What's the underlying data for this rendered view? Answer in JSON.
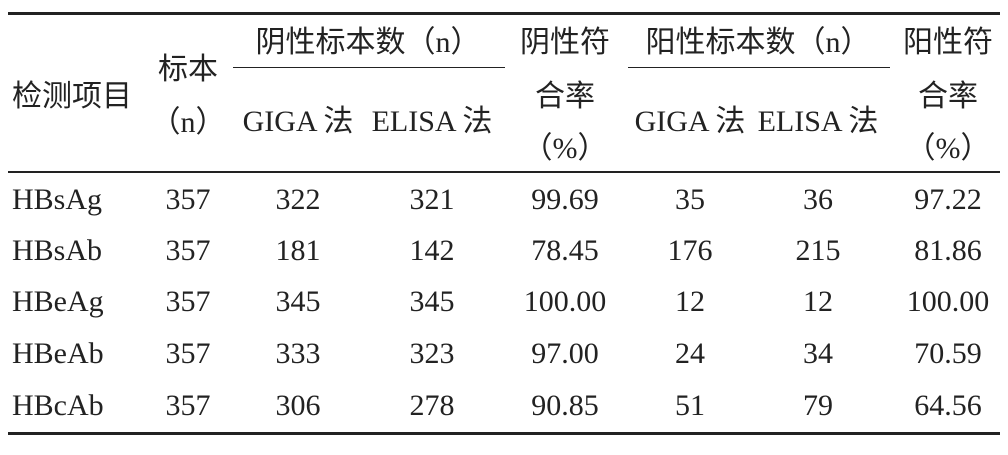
{
  "table": {
    "header": {
      "item": "检测项目",
      "sample": [
        "标本",
        "（n）"
      ],
      "negative": {
        "title": "阴性标本数（n）",
        "giga": "GIGA 法",
        "elisa": "ELISA 法"
      },
      "negative_rate": [
        "阴性符",
        "合率",
        "（%）"
      ],
      "positive": {
        "title": "阳性标本数（n）",
        "giga": "GIGA 法",
        "elisa": "ELISA 法"
      },
      "positive_rate": [
        "阳性符",
        "合率",
        "（%）"
      ]
    },
    "rows": [
      [
        "HBsAg",
        "357",
        "322",
        "321",
        "99.69",
        "35",
        "36",
        "97.22"
      ],
      [
        "HBsAb",
        "357",
        "181",
        "142",
        "78.45",
        "176",
        "215",
        "81.86"
      ],
      [
        "HBeAg",
        "357",
        "345",
        "345",
        "100.00",
        "12",
        "12",
        "100.00"
      ],
      [
        "HBeAb",
        "357",
        "333",
        "323",
        "97.00",
        "24",
        "34",
        "70.59"
      ],
      [
        "HBcAb",
        "357",
        "306",
        "278",
        "90.85",
        "51",
        "79",
        "64.56"
      ]
    ]
  }
}
